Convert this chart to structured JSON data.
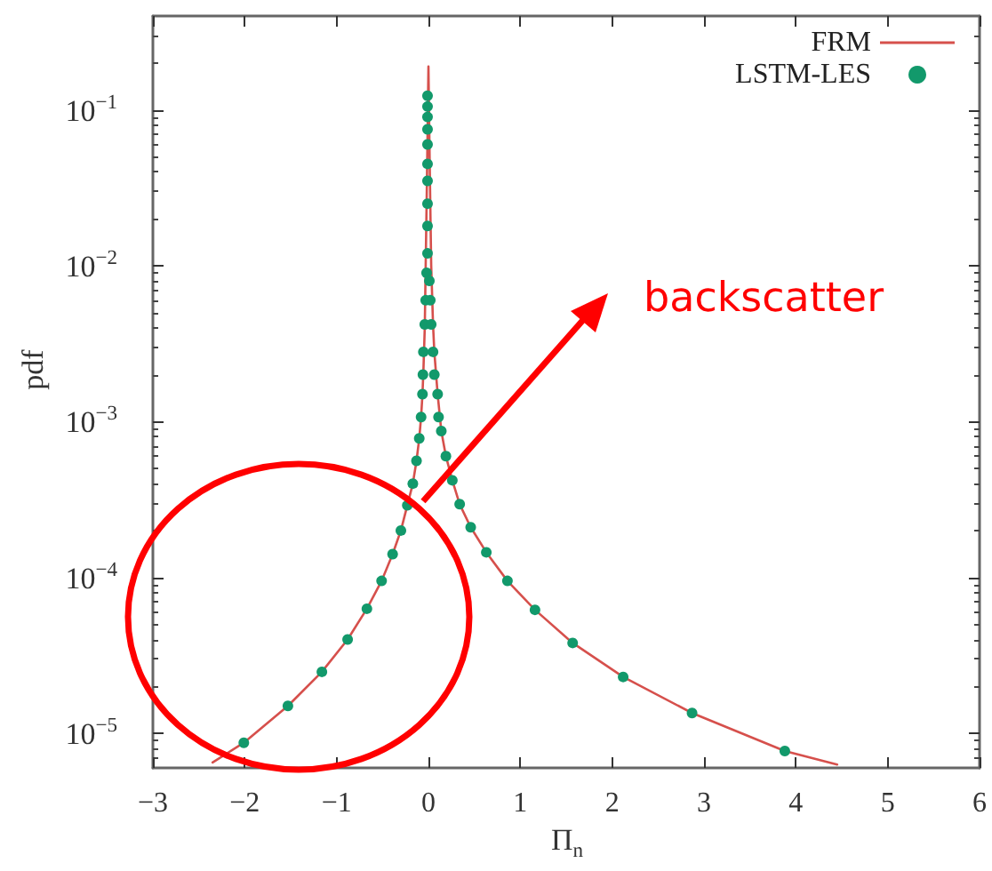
{
  "chart_data": {
    "type": "line",
    "xlabel": "Π$_{n}$",
    "ylabel": "pdf",
    "xlim": [
      -3,
      6
    ],
    "xticks": [
      {
        "value": -3,
        "label": "−3"
      },
      {
        "value": -2,
        "label": "−2"
      },
      {
        "value": -1,
        "label": "−1"
      },
      0,
      1,
      2,
      3,
      4,
      5,
      6
    ],
    "ylim": [
      6e-06,
      0.4
    ],
    "log": "y",
    "yticks": [
      {
        "value": 1e-05,
        "label": "10$^{−5}$"
      },
      {
        "value": 0.0001,
        "label": "10$^{−4}$"
      },
      {
        "value": 0.001,
        "label": "10$^{−3}$"
      },
      {
        "value": 0.01,
        "label": "10$^{−2}$"
      },
      {
        "value": 0.1,
        "label": "10$^{−1}$"
      }
    ],
    "grid": false,
    "legend": "top right",
    "annotations": [
      "backscatter"
    ],
    "series": [
      {
        "name": "FRM",
        "type": "line",
        "color": "#d6504c",
        "marker": "none",
        "line_style": "solid",
        "x": [
          -2.35,
          -2.01,
          -1.53,
          -1.16,
          -0.88,
          -0.67,
          -0.51,
          -0.39,
          -0.3,
          -0.23,
          -0.17,
          -0.13,
          -0.1,
          -0.08,
          -0.065,
          -0.055,
          -0.04,
          -0.03,
          -0.015,
          0,
          0.015,
          0.03,
          0.05,
          0.064,
          0.1,
          0.14,
          0.19,
          0.26,
          0.34,
          0.46,
          0.63,
          0.86,
          1.16,
          1.57,
          2.12,
          2.87,
          3.88,
          4.45
        ],
        "values": [
          6.5e-06,
          8.7e-06,
          1.5e-05,
          2.48e-05,
          4e-05,
          6.3e-05,
          9.5e-05,
          0.000141,
          0.0002,
          0.00029,
          0.0004,
          0.00056,
          0.00078,
          0.00107,
          0.0015,
          0.0021,
          0.004,
          0.01,
          0.04,
          0.19,
          0.04,
          0.01,
          0.0042,
          0.0028,
          0.0015,
          0.00087,
          0.0006,
          0.00042,
          0.000295,
          0.00021,
          0.000145,
          9.5e-05,
          6.2e-05,
          3.8e-05,
          2.3e-05,
          1.35e-05,
          7.7e-06,
          6.3e-06
        ]
      },
      {
        "name": "LSTM-LES",
        "type": "scatter",
        "color": "#12996b",
        "marker": "circle",
        "x": [
          -2.01,
          -1.53,
          -1.16,
          -0.88,
          -0.67,
          -0.51,
          -0.39,
          -0.3,
          -0.23,
          -0.17,
          -0.13,
          -0.1,
          -0.08,
          -0.065,
          -0.06,
          -0.055,
          -0.04,
          -0.03,
          -0.02,
          -0.01,
          -0.01,
          -0.01,
          -0.01,
          -0.01,
          -0.01,
          -0.01,
          -0.01,
          -0.01,
          -0.01,
          0.01,
          0.02,
          0.03,
          0.05,
          0.064,
          0.1,
          0.11,
          0.14,
          0.19,
          0.26,
          0.34,
          0.46,
          0.63,
          0.86,
          1.16,
          1.57,
          2.12,
          2.87,
          3.88
        ],
        "values": [
          8.7e-06,
          1.5e-05,
          2.48e-05,
          4e-05,
          6.3e-05,
          9.5e-05,
          0.000141,
          0.0002,
          0.00029,
          0.0004,
          0.00056,
          0.00078,
          0.00107,
          0.0015,
          0.002,
          0.0028,
          0.0042,
          0.006,
          0.009,
          0.012,
          0.018,
          0.025,
          0.035,
          0.045,
          0.06,
          0.075,
          0.09,
          0.105,
          0.123,
          0.008,
          0.006,
          0.0042,
          0.0028,
          0.002,
          0.0015,
          0.00107,
          0.00087,
          0.0006,
          0.00042,
          0.000295,
          0.00021,
          0.000145,
          9.5e-05,
          6.2e-05,
          3.8e-05,
          2.3e-05,
          1.35e-05,
          7.7e-06
        ]
      }
    ]
  }
}
